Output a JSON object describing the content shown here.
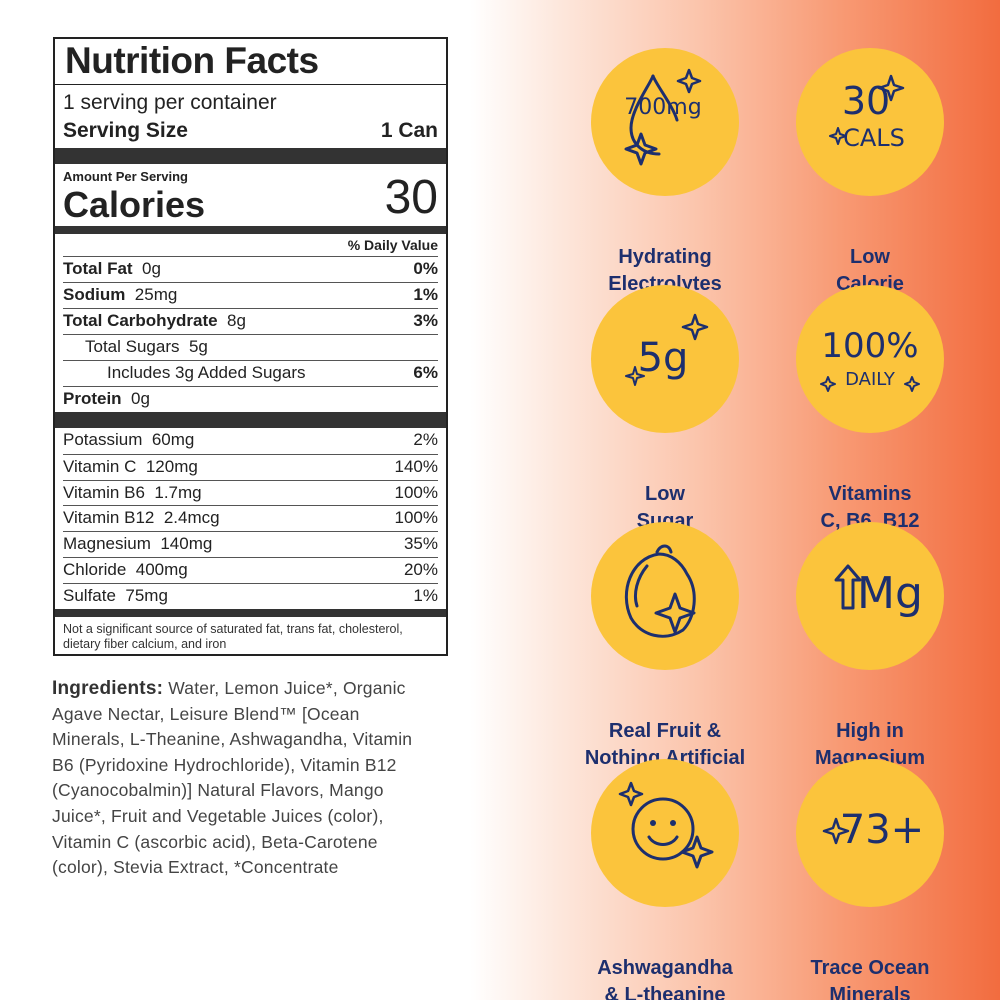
{
  "nutrition": {
    "title": "Nutrition Facts",
    "servings": "1 serving per container",
    "serving_size_label": "Serving Size",
    "serving_size_value": "1 Can",
    "amount_per_serving": "Amount Per Serving",
    "calories_label": "Calories",
    "calories_value": "30",
    "daily_value_header": "% Daily Value",
    "rows": [
      {
        "label": "Total Fat",
        "amount": "0g",
        "dv": "0%"
      },
      {
        "label": "Sodium",
        "amount": "25mg",
        "dv": "1%"
      },
      {
        "label": "Total Carbohydrate",
        "amount": "8g",
        "dv": "3%"
      },
      {
        "label": "Total Sugars",
        "amount": "5g",
        "dv": ""
      },
      {
        "label": "Includes 3g Added Sugars",
        "amount": "",
        "dv": "6%"
      },
      {
        "label": "Protein",
        "amount": "0g",
        "dv": ""
      }
    ],
    "vitamins": [
      {
        "label": "Potassium",
        "amount": "60mg",
        "dv": "2%"
      },
      {
        "label": "Vitamin C",
        "amount": "120mg",
        "dv": "140%"
      },
      {
        "label": "Vitamin B6",
        "amount": "1.7mg",
        "dv": "100%"
      },
      {
        "label": "Vitamin B12",
        "amount": "2.4mcg",
        "dv": "100%"
      },
      {
        "label": "Magnesium",
        "amount": "140mg",
        "dv": "35%"
      },
      {
        "label": "Chloride",
        "amount": "400mg",
        "dv": "20%"
      },
      {
        "label": "Sulfate",
        "amount": "75mg",
        "dv": "1%"
      }
    ],
    "footnote": "Not a significant source of saturated fat, trans fat, cholesterol, dietary fiber calcium, and iron"
  },
  "ingredients": {
    "label": "Ingredients:",
    "text": "Water, Lemon Juice*, Organic Agave Nectar, Leisure Blend™ [Ocean Minerals, L-Theanine, Ashwagandha, Vitamin B6 (Pyridoxine Hydrochloride), Vitamin B12 (Cyanocobalmin)] Natural Flavors, Mango Juice*, Fruit and Vegetable Juices (color), Vitamin C (ascorbic acid), Beta-Carotene (color), Stevia Extract, *Concentrate"
  },
  "features": [
    {
      "icon": "droplet-icon",
      "badge": "700mg",
      "line1": "Hydrating",
      "line2": "Electrolytes"
    },
    {
      "icon": "calories-icon",
      "badge_top": "30",
      "badge_bottom": "CALS",
      "line1": "Low",
      "line2": "Calorie"
    },
    {
      "icon": "sugar-icon",
      "badge": "5g",
      "line1": "Low",
      "line2": "Sugar"
    },
    {
      "icon": "daily-value-icon",
      "badge_top": "100%",
      "badge_bottom": "DAILY",
      "line1": "Vitamins",
      "line2": "C, B6, B12"
    },
    {
      "icon": "lemon-icon",
      "line1": "Real Fruit &",
      "line2": "Nothing Artificial"
    },
    {
      "icon": "magnesium-icon",
      "badge": "Mg",
      "line1": "High in",
      "line2": "Magnesium"
    },
    {
      "icon": "smiley-icon",
      "line1": "Ashwagandha",
      "line2": "& L-theanine"
    },
    {
      "icon": "minerals-icon",
      "badge": "73+",
      "line1": "Trace Ocean",
      "line2": "Minerals"
    }
  ],
  "colors": {
    "badge_fill": "#fbc43c",
    "badge_ink": "#1d2f6e",
    "gradient_end": "#f26c3f"
  }
}
